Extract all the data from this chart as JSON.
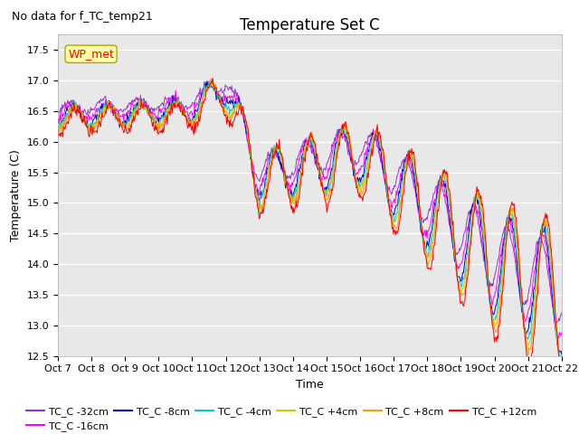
{
  "title": "Temperature Set C",
  "no_data_label": "No data for f_TC_temp21",
  "ylabel": "Temperature (C)",
  "xlabel": "Time",
  "wp_met_label": "WP_met",
  "ylim": [
    12.5,
    17.75
  ],
  "series_labels": [
    "TC_C -32cm",
    "TC_C -16cm",
    "TC_C -8cm",
    "TC_C -4cm",
    "TC_C +4cm",
    "TC_C +8cm",
    "TC_C +12cm"
  ],
  "series_colors": [
    "#9933cc",
    "#ff00ff",
    "#0000cc",
    "#00cccc",
    "#cccc00",
    "#ff9900",
    "#ff0000"
  ],
  "x_tick_labels": [
    "Oct 7",
    "Oct 8",
    "Oct 9",
    "Oct 10",
    "Oct 11",
    "Oct 12",
    "Oct 13",
    "Oct 14",
    "Oct 15",
    "Oct 16",
    "Oct 17",
    "Oct 18",
    "Oct 19",
    "Oct 20",
    "Oct 21",
    "Oct 22"
  ],
  "background_color": "#ffffff",
  "plot_bg_color": "#e8e8e8",
  "grid_color": "#ffffff",
  "title_fontsize": 12,
  "label_fontsize": 9,
  "tick_fontsize": 8,
  "legend_fontsize": 8
}
